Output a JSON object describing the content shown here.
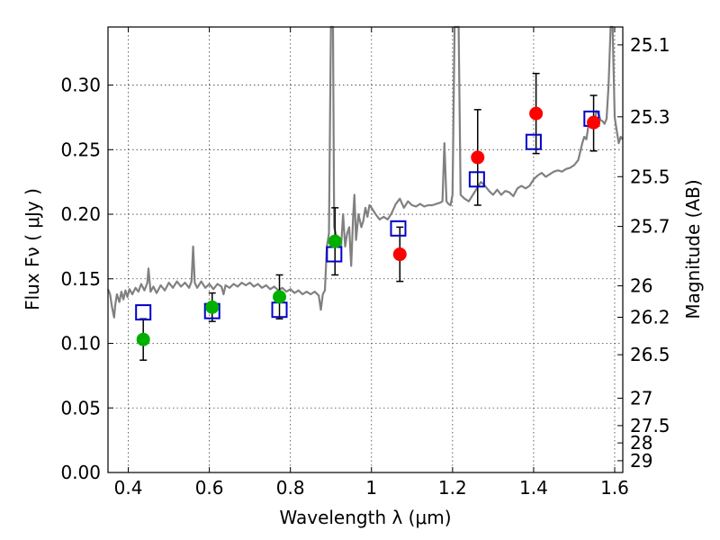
{
  "chart_data": {
    "type": "scatter",
    "xlabel": "Wavelength  λ (μm)",
    "ylabel": "Flux  Fν  ( μJy )",
    "y2label": "Magnitude (AB)",
    "xlim": [
      0.35,
      1.62
    ],
    "ylim": [
      0.0,
      0.345
    ],
    "grid": true,
    "x_ticks": [
      {
        "value": 0.4,
        "label": "0.4"
      },
      {
        "value": 0.6,
        "label": "0.6"
      },
      {
        "value": 0.8,
        "label": "0.8"
      },
      {
        "value": 1.0,
        "label": "1"
      },
      {
        "value": 1.2,
        "label": "1.2"
      },
      {
        "value": 1.4,
        "label": "1.4"
      },
      {
        "value": 1.6,
        "label": "1.6"
      }
    ],
    "y_ticks": [
      {
        "value": 0.0,
        "label": "0.00"
      },
      {
        "value": 0.05,
        "label": "0.05"
      },
      {
        "value": 0.1,
        "label": "0.10"
      },
      {
        "value": 0.15,
        "label": "0.15"
      },
      {
        "value": 0.2,
        "label": "0.20"
      },
      {
        "value": 0.25,
        "label": "0.25"
      },
      {
        "value": 0.3,
        "label": "0.30"
      }
    ],
    "y2_ticks": [
      {
        "mag": 25.1,
        "label": "25.1"
      },
      {
        "mag": 25.3,
        "label": "25.3"
      },
      {
        "mag": 25.5,
        "label": "25.5"
      },
      {
        "mag": 25.7,
        "label": "25.7"
      },
      {
        "mag": 26.0,
        "label": "26"
      },
      {
        "mag": 26.2,
        "label": "26.2"
      },
      {
        "mag": 26.5,
        "label": "26.5"
      },
      {
        "mag": 27.0,
        "label": "27"
      },
      {
        "mag": 27.5,
        "label": "27.5"
      },
      {
        "mag": 28.0,
        "label": "28"
      },
      {
        "mag": 29.0,
        "label": "29"
      }
    ],
    "colors": {
      "spectrum": "#808080",
      "model": "#0000cc",
      "green_points": "#00b000",
      "red_points": "#ff0000",
      "errorbars": "#000000"
    },
    "series": [
      {
        "kind": "spectrum",
        "points": [
          [
            0.35,
            0.142
          ],
          [
            0.355,
            0.138
          ],
          [
            0.36,
            0.128
          ],
          [
            0.365,
            0.12
          ],
          [
            0.368,
            0.13
          ],
          [
            0.372,
            0.138
          ],
          [
            0.378,
            0.132
          ],
          [
            0.383,
            0.14
          ],
          [
            0.388,
            0.134
          ],
          [
            0.393,
            0.141
          ],
          [
            0.398,
            0.136
          ],
          [
            0.403,
            0.142
          ],
          [
            0.41,
            0.138
          ],
          [
            0.418,
            0.143
          ],
          [
            0.425,
            0.14
          ],
          [
            0.432,
            0.146
          ],
          [
            0.44,
            0.141
          ],
          [
            0.447,
            0.147
          ],
          [
            0.45,
            0.158
          ],
          [
            0.455,
            0.14
          ],
          [
            0.462,
            0.144
          ],
          [
            0.47,
            0.139
          ],
          [
            0.48,
            0.145
          ],
          [
            0.49,
            0.141
          ],
          [
            0.5,
            0.147
          ],
          [
            0.51,
            0.143
          ],
          [
            0.52,
            0.148
          ],
          [
            0.53,
            0.144
          ],
          [
            0.54,
            0.147
          ],
          [
            0.55,
            0.143
          ],
          [
            0.556,
            0.148
          ],
          [
            0.56,
            0.175
          ],
          [
            0.564,
            0.147
          ],
          [
            0.57,
            0.143
          ],
          [
            0.58,
            0.148
          ],
          [
            0.59,
            0.143
          ],
          [
            0.6,
            0.146
          ],
          [
            0.61,
            0.142
          ],
          [
            0.62,
            0.146
          ],
          [
            0.63,
            0.144
          ],
          [
            0.635,
            0.138
          ],
          [
            0.64,
            0.145
          ],
          [
            0.65,
            0.143
          ],
          [
            0.66,
            0.146
          ],
          [
            0.67,
            0.144
          ],
          [
            0.68,
            0.147
          ],
          [
            0.69,
            0.145
          ],
          [
            0.7,
            0.147
          ],
          [
            0.71,
            0.144
          ],
          [
            0.72,
            0.146
          ],
          [
            0.73,
            0.143
          ],
          [
            0.74,
            0.145
          ],
          [
            0.75,
            0.142
          ],
          [
            0.76,
            0.144
          ],
          [
            0.77,
            0.141
          ],
          [
            0.78,
            0.143
          ],
          [
            0.79,
            0.14
          ],
          [
            0.8,
            0.142
          ],
          [
            0.81,
            0.139
          ],
          [
            0.82,
            0.141
          ],
          [
            0.83,
            0.138
          ],
          [
            0.84,
            0.14
          ],
          [
            0.85,
            0.138
          ],
          [
            0.86,
            0.14
          ],
          [
            0.87,
            0.137
          ],
          [
            0.875,
            0.126
          ],
          [
            0.88,
            0.138
          ],
          [
            0.885,
            0.141
          ],
          [
            0.89,
            0.175
          ],
          [
            0.895,
            0.185
          ],
          [
            0.9,
            0.345
          ],
          [
            0.905,
            0.345
          ],
          [
            0.908,
            0.19
          ],
          [
            0.912,
            0.185
          ],
          [
            0.918,
            0.18
          ],
          [
            0.925,
            0.175
          ],
          [
            0.93,
            0.2
          ],
          [
            0.935,
            0.175
          ],
          [
            0.94,
            0.185
          ],
          [
            0.945,
            0.19
          ],
          [
            0.95,
            0.16
          ],
          [
            0.955,
            0.2
          ],
          [
            0.958,
            0.215
          ],
          [
            0.962,
            0.18
          ],
          [
            0.968,
            0.2
          ],
          [
            0.975,
            0.19
          ],
          [
            0.98,
            0.195
          ],
          [
            0.985,
            0.205
          ],
          [
            0.99,
            0.198
          ],
          [
            0.995,
            0.207
          ],
          [
            1.0,
            0.205
          ],
          [
            1.01,
            0.2
          ],
          [
            1.02,
            0.196
          ],
          [
            1.03,
            0.198
          ],
          [
            1.04,
            0.196
          ],
          [
            1.05,
            0.201
          ],
          [
            1.06,
            0.208
          ],
          [
            1.07,
            0.212
          ],
          [
            1.08,
            0.205
          ],
          [
            1.09,
            0.21
          ],
          [
            1.1,
            0.207
          ],
          [
            1.11,
            0.206
          ],
          [
            1.12,
            0.208
          ],
          [
            1.13,
            0.206
          ],
          [
            1.14,
            0.207
          ],
          [
            1.15,
            0.207
          ],
          [
            1.16,
            0.208
          ],
          [
            1.17,
            0.209
          ],
          [
            1.175,
            0.21
          ],
          [
            1.18,
            0.255
          ],
          [
            1.185,
            0.21
          ],
          [
            1.19,
            0.208
          ],
          [
            1.195,
            0.207
          ],
          [
            1.2,
            0.215
          ],
          [
            1.205,
            0.345
          ],
          [
            1.215,
            0.345
          ],
          [
            1.22,
            0.215
          ],
          [
            1.23,
            0.212
          ],
          [
            1.24,
            0.21
          ],
          [
            1.25,
            0.215
          ],
          [
            1.26,
            0.22
          ],
          [
            1.27,
            0.225
          ],
          [
            1.28,
            0.222
          ],
          [
            1.29,
            0.218
          ],
          [
            1.3,
            0.215
          ],
          [
            1.31,
            0.219
          ],
          [
            1.32,
            0.215
          ],
          [
            1.33,
            0.218
          ],
          [
            1.34,
            0.217
          ],
          [
            1.35,
            0.214
          ],
          [
            1.36,
            0.22
          ],
          [
            1.37,
            0.222
          ],
          [
            1.38,
            0.22
          ],
          [
            1.39,
            0.222
          ],
          [
            1.4,
            0.227
          ],
          [
            1.41,
            0.23
          ],
          [
            1.42,
            0.232
          ],
          [
            1.43,
            0.229
          ],
          [
            1.44,
            0.231
          ],
          [
            1.45,
            0.233
          ],
          [
            1.46,
            0.234
          ],
          [
            1.47,
            0.233
          ],
          [
            1.48,
            0.235
          ],
          [
            1.49,
            0.236
          ],
          [
            1.5,
            0.238
          ],
          [
            1.51,
            0.242
          ],
          [
            1.52,
            0.255
          ],
          [
            1.525,
            0.26
          ],
          [
            1.53,
            0.258
          ],
          [
            1.535,
            0.268
          ],
          [
            1.54,
            0.27
          ],
          [
            1.545,
            0.272
          ],
          [
            1.55,
            0.271
          ],
          [
            1.555,
            0.28
          ],
          [
            1.56,
            0.278
          ],
          [
            1.565,
            0.273
          ],
          [
            1.57,
            0.272
          ],
          [
            1.575,
            0.27
          ],
          [
            1.58,
            0.274
          ],
          [
            1.585,
            0.3
          ],
          [
            1.59,
            0.345
          ],
          [
            1.595,
            0.345
          ],
          [
            1.6,
            0.275
          ],
          [
            1.605,
            0.265
          ],
          [
            1.61,
            0.255
          ],
          [
            1.615,
            0.26
          ],
          [
            1.62,
            0.258
          ]
        ]
      },
      {
        "kind": "model_squares",
        "points": [
          [
            0.437,
            0.124
          ],
          [
            0.607,
            0.125
          ],
          [
            0.773,
            0.126
          ],
          [
            0.908,
            0.169
          ],
          [
            1.066,
            0.189
          ],
          [
            1.26,
            0.227
          ],
          [
            1.4,
            0.256
          ],
          [
            1.543,
            0.274
          ]
        ]
      },
      {
        "kind": "measured_green",
        "points": [
          {
            "x": 0.437,
            "y": 0.103,
            "err_low": 0.087,
            "err_high": 0.119
          },
          {
            "x": 0.607,
            "y": 0.128,
            "err_low": 0.117,
            "err_high": 0.139
          },
          {
            "x": 0.773,
            "y": 0.136,
            "err_low": 0.119,
            "err_high": 0.153
          },
          {
            "x": 0.91,
            "y": 0.179,
            "err_low": 0.153,
            "err_high": 0.205
          }
        ]
      },
      {
        "kind": "measured_red",
        "points": [
          {
            "x": 1.07,
            "y": 0.169,
            "err_low": 0.148,
            "err_high": 0.19
          },
          {
            "x": 1.262,
            "y": 0.244,
            "err_low": 0.207,
            "err_high": 0.281
          },
          {
            "x": 1.406,
            "y": 0.278,
            "err_low": 0.247,
            "err_high": 0.309
          },
          {
            "x": 1.548,
            "y": 0.271,
            "err_low": 0.249,
            "err_high": 0.292
          }
        ]
      }
    ]
  }
}
